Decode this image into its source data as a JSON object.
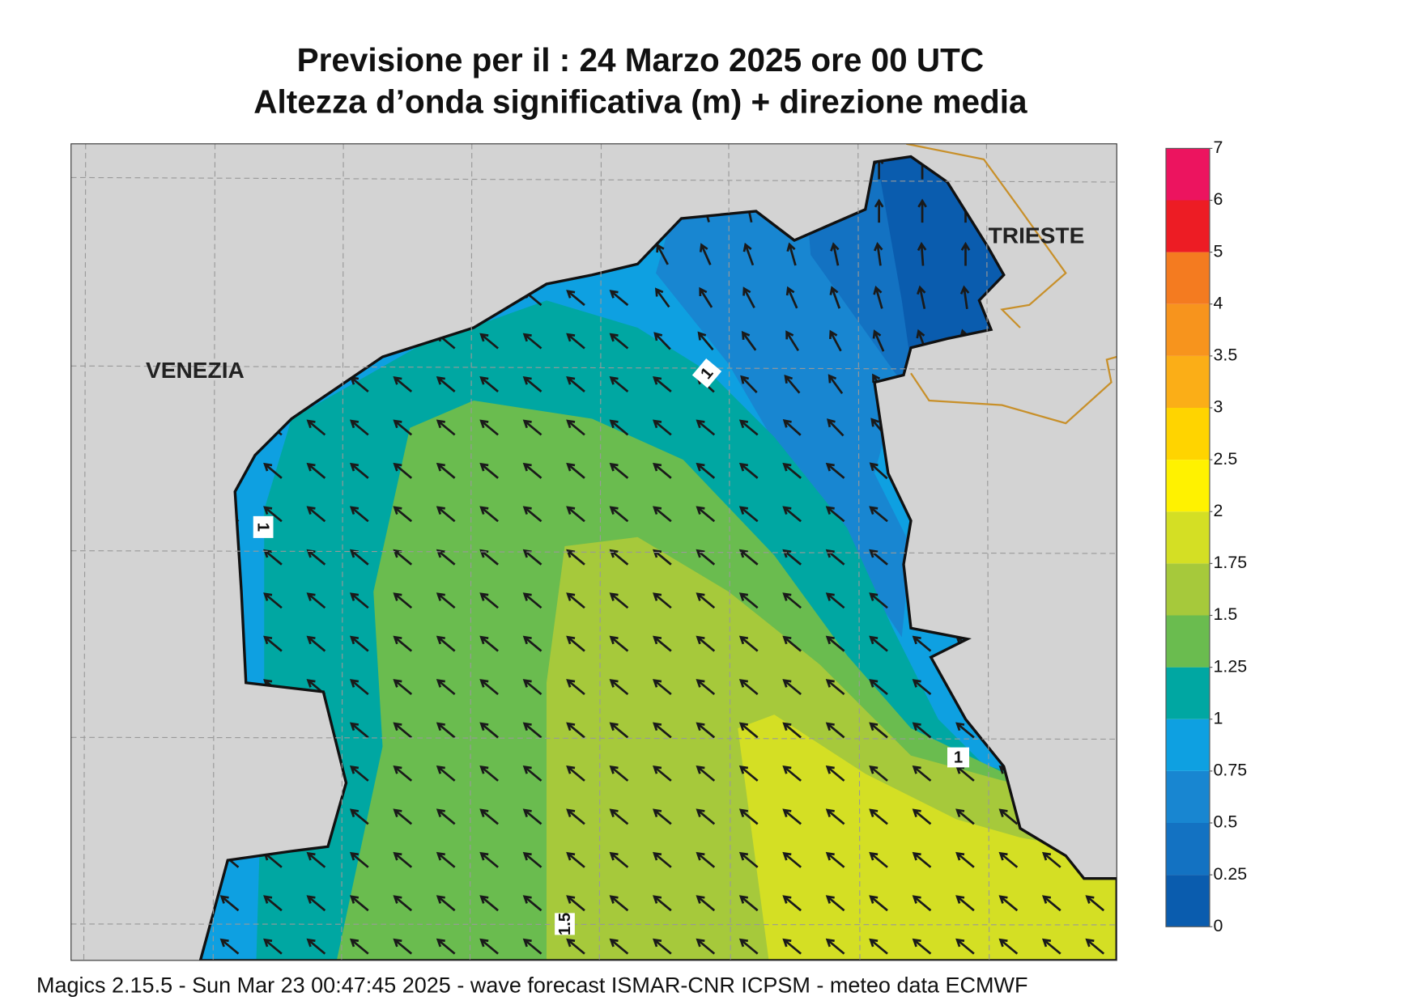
{
  "header": {
    "title": "Previsione per il  :  24   Marzo   2025   ore 00 UTC",
    "subtitle": "Altezza d’onda significativa (m) + direzione media"
  },
  "map": {
    "places": [
      "VENEZIA",
      "TRIESTE"
    ],
    "contour_labels": [
      "1",
      "1",
      "1",
      "1.5"
    ]
  },
  "colorbar": {
    "ticks": [
      0,
      0.25,
      0.5,
      0.75,
      1,
      1.25,
      1.5,
      1.75,
      2,
      2.5,
      3,
      3.5,
      4,
      5,
      6,
      7
    ],
    "colors": [
      "#0a5cae",
      "#1372c2",
      "#1886d1",
      "#0ea0e1",
      "#00a7a2",
      "#6abc4f",
      "#a6c93b",
      "#d4df24",
      "#fff200",
      "#ffd400",
      "#fbae17",
      "#f7941d",
      "#f47b20",
      "#ed1c24",
      "#ec145f"
    ]
  },
  "footer": "Magics 2.15.5 - Sun Mar 23 00:47:45 2025 - wave forecast  ISMAR-CNR  ICPSM - meteo data   ECMWF"
}
